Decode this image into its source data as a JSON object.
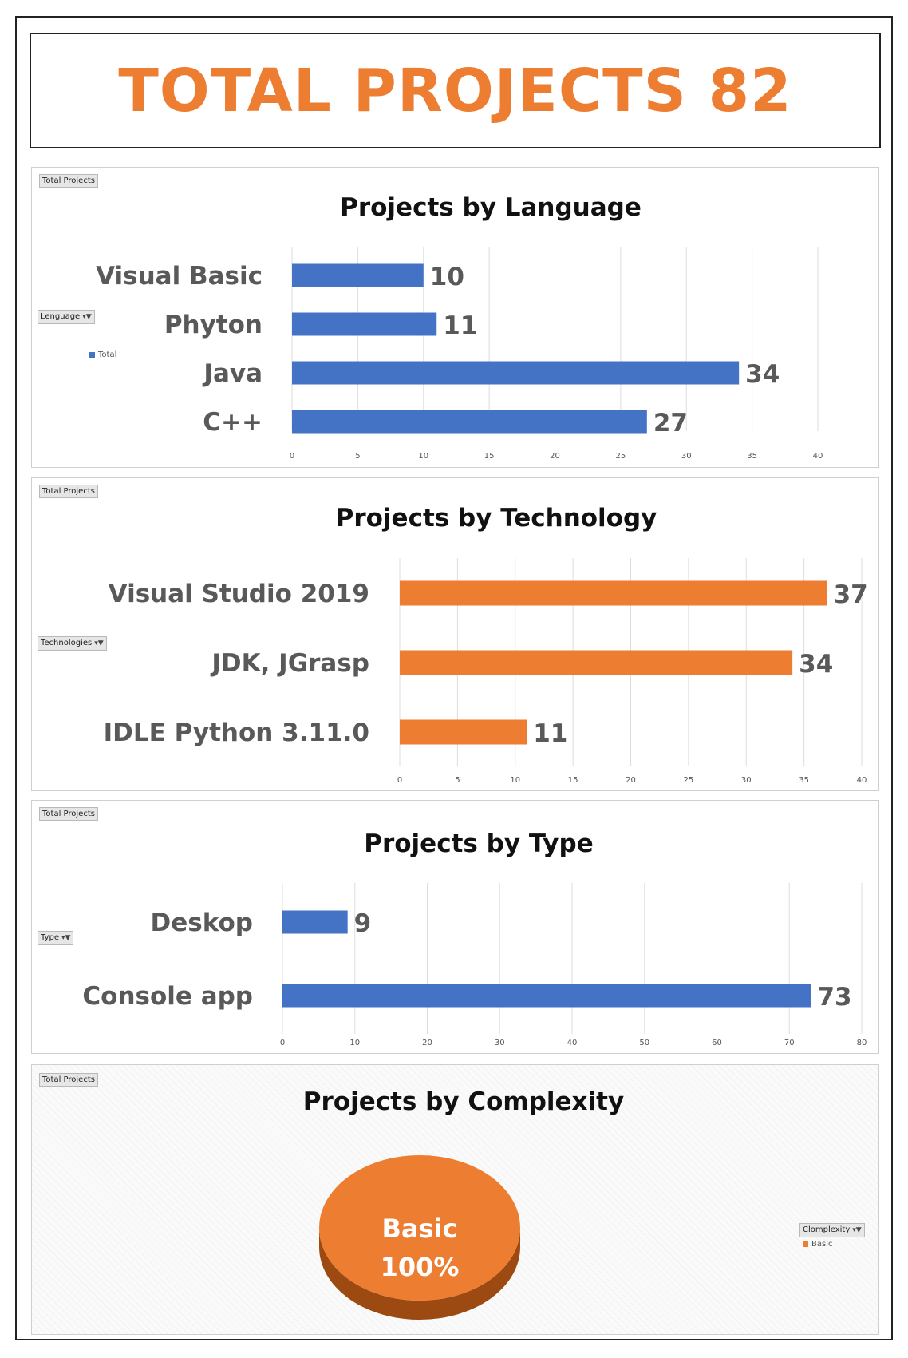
{
  "dashboard": {
    "title": "TOTAL PROJECTS 82",
    "colors": {
      "accent_orange": "#ed7d31",
      "accent_blue": "#4472c4"
    }
  },
  "charts": {
    "language": {
      "field_tag": "Total Projects",
      "filter_tag": "Lenguage",
      "legend_label": "Total"
    },
    "technology": {
      "field_tag": "Total Projects",
      "filter_tag": "Technologies"
    },
    "type": {
      "field_tag": "Total Projects",
      "filter_tag": "Type"
    },
    "complexity": {
      "field_tag": "Total Projects",
      "filter_tag": "Clomplexity",
      "legend_label": "Basic"
    }
  },
  "chart_data": [
    {
      "type": "bar",
      "orientation": "horizontal",
      "title": "Projects by Language",
      "categories": [
        "Visual Basic",
        "Phyton",
        "Java",
        "C++"
      ],
      "values": [
        10,
        11,
        34,
        27
      ],
      "xlim": [
        0,
        40
      ],
      "ticks": [
        0,
        5,
        10,
        15,
        20,
        25,
        30,
        35,
        40
      ],
      "color": "#4472c4",
      "grid": true,
      "legend": "left"
    },
    {
      "type": "bar",
      "orientation": "horizontal",
      "title": "Projects by Technology",
      "categories": [
        "Visual Studio 2019",
        "JDK, JGrasp",
        "IDLE Python 3.11.0"
      ],
      "values": [
        37,
        34,
        11
      ],
      "xlim": [
        0,
        40
      ],
      "ticks": [
        0,
        5,
        10,
        15,
        20,
        25,
        30,
        35,
        40
      ],
      "color": "#ed7d31",
      "grid": true
    },
    {
      "type": "bar",
      "orientation": "horizontal",
      "title": "Projects by Type",
      "categories": [
        "Deskop",
        "Console app"
      ],
      "values": [
        9,
        73
      ],
      "xlim": [
        0,
        80
      ],
      "ticks": [
        0,
        10,
        20,
        30,
        40,
        50,
        60,
        70,
        80
      ],
      "color": "#4472c4",
      "grid": true
    },
    {
      "type": "pie",
      "title": "Projects by Complexity",
      "slices": [
        {
          "label": "Basic",
          "value": 100,
          "percent_label": "100%"
        }
      ],
      "color": "#ed7d31",
      "legend": "right"
    }
  ]
}
